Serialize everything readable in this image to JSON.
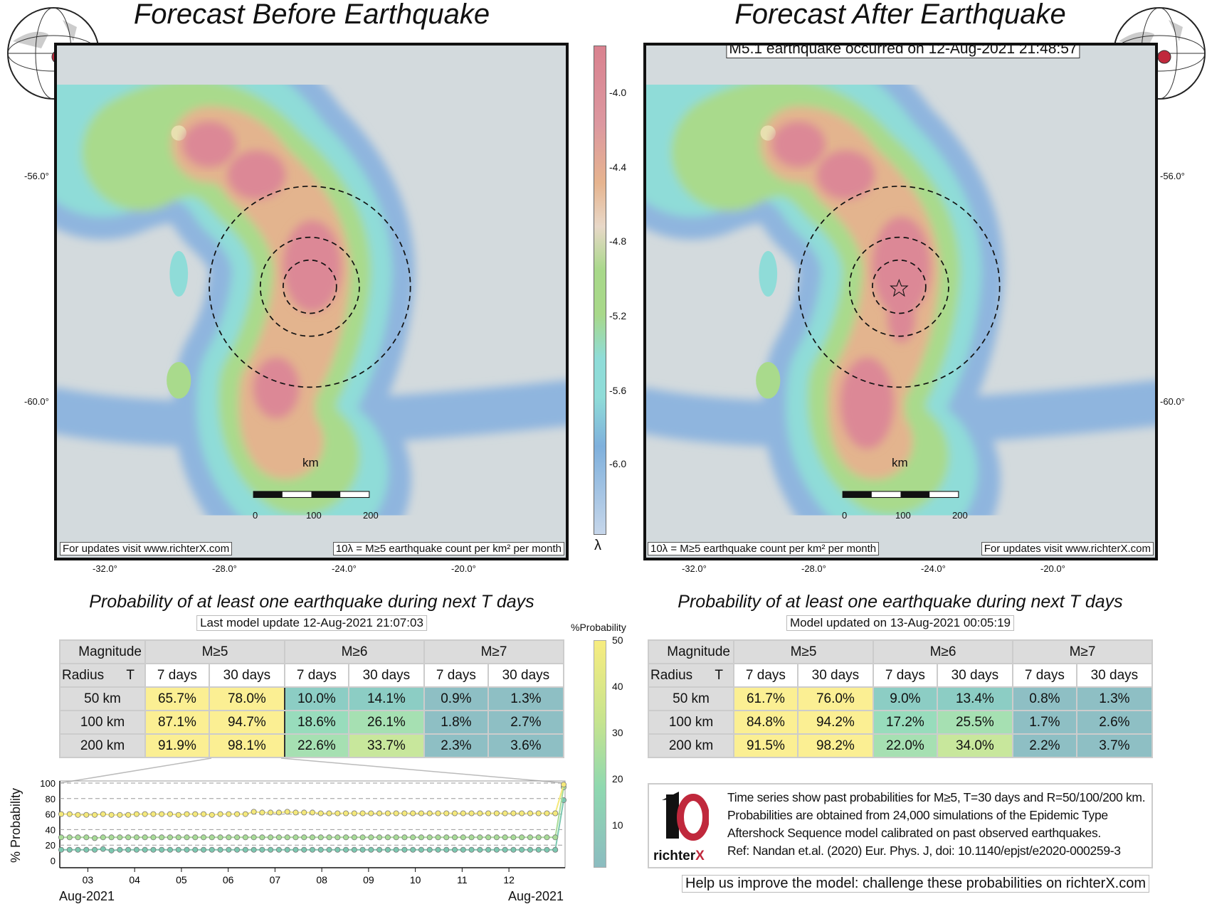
{
  "left_map": {
    "title": "Forecast Before Earthquake",
    "note_left": "For updates visit www.richterX.com",
    "note_right": "10λ = M≥5 earthquake count per km² per month",
    "km": "km",
    "scale_ticks": [
      "0",
      "100",
      "200"
    ],
    "lat_ticks": [
      "-56.0°",
      "-60.0°"
    ],
    "lon_ticks": [
      "-32.0°",
      "-28.0°",
      "-24.0°",
      "-20.0°"
    ]
  },
  "right_map": {
    "title": "Forecast After Earthquake",
    "event": "M5.1 earthquake occurred on 12-Aug-2021 21:48:57",
    "note_left": "10λ = M≥5 earthquake count per km² per month",
    "note_right": "For updates visit www.richterX.com",
    "km": "km",
    "scale_ticks": [
      "0",
      "100",
      "200"
    ],
    "lat_ticks": [
      "-56.0°",
      "-60.0°"
    ],
    "lon_ticks": [
      "-32.0°",
      "-28.0°",
      "-24.0°",
      "-20.0°"
    ]
  },
  "lambda_colorbar": {
    "ticks": [
      "-4.0",
      "-4.4",
      "-4.8",
      "-5.2",
      "-5.6",
      "-6.0"
    ],
    "label": "λ",
    "colors": [
      "#d9828f",
      "#e6b48f",
      "#e8d8c8",
      "#a8d88a",
      "#8fdcd8",
      "#7fb0dc",
      "#c6d6ea"
    ]
  },
  "prob_colorbar": {
    "label": "%Probability",
    "ticks": [
      "50",
      "40",
      "30",
      "20",
      "10"
    ]
  },
  "left_table": {
    "title": "Probability of at least one earthquake during next T days",
    "update": "Last model update 12-Aug-2021 21:07:03",
    "corner_top": "Magnitude",
    "corner_bottom_left": "Radius",
    "corner_bottom_right": "T",
    "mag_headers": [
      "M≥5",
      "M≥6",
      "M≥7"
    ],
    "t_headers": [
      "7 days",
      "30 days",
      "7 days",
      "30 days",
      "7 days",
      "30 days"
    ],
    "rows": [
      {
        "radius": "50 km",
        "values": [
          "65.7%",
          "78.0%",
          "10.0%",
          "14.1%",
          "0.9%",
          "1.3%"
        ]
      },
      {
        "radius": "100 km",
        "values": [
          "87.1%",
          "94.7%",
          "18.6%",
          "26.1%",
          "1.8%",
          "2.7%"
        ]
      },
      {
        "radius": "200 km",
        "values": [
          "91.9%",
          "98.1%",
          "22.6%",
          "33.7%",
          "2.3%",
          "3.6%"
        ]
      }
    ]
  },
  "right_table": {
    "title": "Probability of at least one earthquake during next T days",
    "update": "Model updated on 13-Aug-2021 00:05:19",
    "corner_top": "Magnitude",
    "corner_bottom_left": "Radius",
    "corner_bottom_right": "T",
    "mag_headers": [
      "M≥5",
      "M≥6",
      "M≥7"
    ],
    "t_headers": [
      "7 days",
      "30 days",
      "7 days",
      "30 days",
      "7 days",
      "30 days"
    ],
    "rows": [
      {
        "radius": "50 km",
        "values": [
          "61.7%",
          "76.0%",
          "9.0%",
          "13.4%",
          "0.8%",
          "1.3%"
        ]
      },
      {
        "radius": "100 km",
        "values": [
          "84.8%",
          "94.2%",
          "17.2%",
          "25.5%",
          "1.7%",
          "2.6%"
        ]
      },
      {
        "radius": "200 km",
        "values": [
          "91.5%",
          "98.2%",
          "22.0%",
          "34.0%",
          "2.2%",
          "3.7%"
        ]
      }
    ]
  },
  "chart_data": {
    "type": "line",
    "ylabel": "% Probability",
    "ylim": [
      0,
      100
    ],
    "yticks": [
      "0",
      "20",
      "40",
      "60",
      "80",
      "100"
    ],
    "xticks": [
      "03",
      "04",
      "05",
      "06",
      "07",
      "08",
      "09",
      "10",
      "11",
      "12"
    ],
    "xlabel_left": "Aug-2021",
    "xlabel_right": "Aug-2021",
    "series": [
      {
        "name": "R=200 km",
        "color": "#f5e97a",
        "values": [
          60,
          60,
          59,
          59,
          59,
          60,
          59,
          59,
          59,
          60,
          60,
          60,
          60,
          60,
          59,
          60,
          60,
          60,
          59,
          60,
          60,
          60,
          60,
          63,
          62,
          62,
          62,
          63,
          62,
          62,
          62,
          61,
          61,
          61,
          61,
          61,
          61,
          61,
          61,
          61,
          61,
          61,
          61,
          61,
          61,
          61,
          61,
          61,
          61,
          61,
          61,
          61,
          61,
          61,
          61,
          61,
          61,
          61,
          61,
          61,
          98.1
        ]
      },
      {
        "name": "R=100 km",
        "color": "#a8dc98",
        "values": [
          30,
          30,
          30,
          30,
          29,
          30,
          30,
          30,
          30,
          30,
          30,
          30,
          30,
          30,
          30,
          30,
          30,
          30,
          30,
          30,
          30,
          30,
          30,
          30,
          30,
          30,
          30,
          30,
          30,
          30,
          30,
          30,
          30,
          30,
          30,
          30,
          30,
          30,
          30,
          30,
          30,
          30,
          30,
          30,
          30,
          30,
          30,
          30,
          30,
          30,
          30,
          30,
          30,
          30,
          30,
          30,
          30,
          30,
          30,
          30,
          94.7
        ]
      },
      {
        "name": "R=50 km",
        "color": "#7cc8b0",
        "values": [
          14,
          14,
          14,
          14,
          14,
          15,
          13,
          14,
          14,
          14,
          14,
          14,
          14,
          14,
          14,
          14,
          14,
          14,
          14,
          14,
          14,
          14,
          14,
          14,
          14,
          14,
          14,
          14,
          14,
          14,
          14,
          14,
          14,
          14,
          14,
          14,
          14,
          14,
          14,
          14,
          14,
          14,
          14,
          14,
          14,
          14,
          14,
          14,
          14,
          14,
          14,
          14,
          14,
          14,
          14,
          14,
          14,
          14,
          14,
          14,
          78
        ]
      }
    ]
  },
  "info": {
    "lines": [
      "Time series show past probabilities for M≥5, T=30 days and R=50/100/200 km.",
      "Probabilities are obtained from 24,000 simulations of the Epidemic Type",
      "Aftershock Sequence model calibrated on past observed earthquakes.",
      "Ref: Nandan et.al. (2020) Eur. Phys. J, doi: 10.1140/epjst/e2020-000259-3"
    ],
    "logo_text": "richterX",
    "help": "Help us improve the model: challenge these probabilities on richterX.com"
  }
}
